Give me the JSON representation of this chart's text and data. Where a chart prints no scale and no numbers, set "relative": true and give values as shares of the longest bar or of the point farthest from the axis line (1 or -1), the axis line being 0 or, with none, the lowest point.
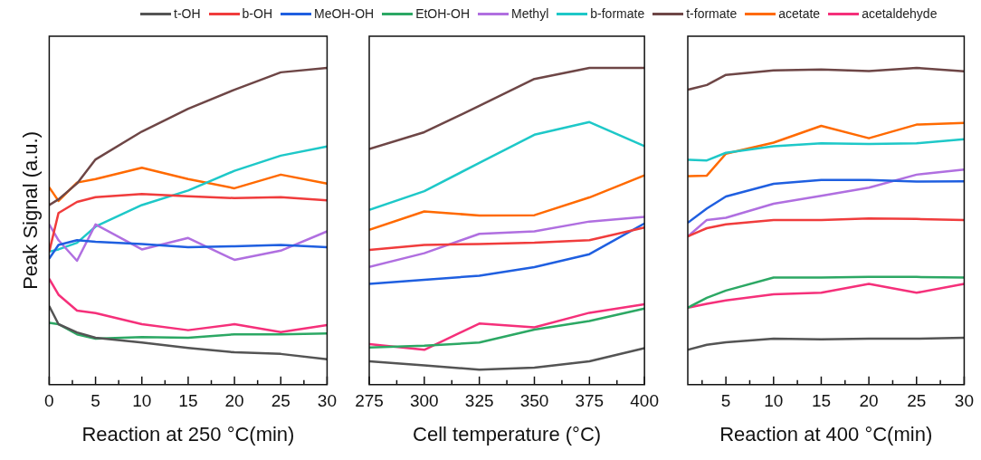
{
  "chart_data": [
    {
      "type": "line",
      "relative": true,
      "legend": "top",
      "ylabel": "Peak Signal (a.u.)",
      "xlabel": "Reaction at 250 °C(min)",
      "x": [
        0,
        1,
        3,
        5,
        10,
        15,
        20,
        25,
        30
      ],
      "xlim": [
        0,
        30
      ],
      "xticks": [
        0,
        {
          "value": 2.5,
          "label": null
        },
        5,
        {
          "value": 7.5,
          "label": null
        },
        10,
        {
          "value": 12.5,
          "label": null
        },
        15,
        {
          "value": 17.5,
          "label": null
        },
        20,
        {
          "value": 22.5,
          "label": null
        },
        25,
        {
          "value": 27.5,
          "label": null
        },
        30
      ],
      "series": [
        {
          "name": "t-OH",
          "color": "#545454",
          "values": [
            0.248,
            0.191,
            0.165,
            0.148,
            0.133,
            0.116,
            0.102,
            0.097,
            0.08
          ]
        },
        {
          "name": "b-OH",
          "color": "#f03c3c",
          "values": [
            0.42,
            0.542,
            0.577,
            0.592,
            0.602,
            0.595,
            0.589,
            0.592,
            0.582
          ]
        },
        {
          "name": "MeOH-OH",
          "color": "#1f5fe0",
          "values": [
            0.398,
            0.441,
            0.456,
            0.451,
            0.444,
            0.434,
            0.437,
            0.441,
            0.434
          ]
        },
        {
          "name": "EtOH-OH",
          "color": "#2ca864",
          "values": [
            0.195,
            0.191,
            0.159,
            0.145,
            0.15,
            0.148,
            0.159,
            0.159,
            0.162
          ]
        },
        {
          "name": "Methyl",
          "color": "#b06fe0",
          "values": [
            0.506,
            0.456,
            0.391,
            0.506,
            0.427,
            0.463,
            0.394,
            0.423,
            0.484
          ]
        },
        {
          "name": "b-formate",
          "color": "#1ec8c8",
          "values": [
            0.42,
            0.427,
            0.448,
            0.499,
            0.567,
            0.613,
            0.675,
            0.723,
            0.752
          ]
        },
        {
          "name": "t-formate",
          "color": "#6e4646",
          "values": [
            0.567,
            0.585,
            0.635,
            0.711,
            0.799,
            0.871,
            0.931,
            0.986,
            1
          ]
        },
        {
          "name": "acetate",
          "color": "#ff6a00",
          "values": [
            0.623,
            0.58,
            0.638,
            0.649,
            0.685,
            0.649,
            0.62,
            0.663,
            0.635
          ]
        },
        {
          "name": "acetaldehyde",
          "color": "#f5307a",
          "values": [
            0.334,
            0.284,
            0.234,
            0.226,
            0.191,
            0.172,
            0.191,
            0.166,
            0.188
          ]
        }
      ]
    },
    {
      "type": "line",
      "relative": true,
      "xlabel": "Cell temperature (°C)",
      "x": [
        275,
        300,
        325,
        350,
        375,
        400
      ],
      "xlim": [
        275,
        400
      ],
      "xticks": [
        275,
        {
          "value": 287.5,
          "label": null
        },
        300,
        {
          "value": 312.5,
          "label": null
        },
        325,
        {
          "value": 337.5,
          "label": null
        },
        350,
        {
          "value": 362.5,
          "label": null
        },
        375,
        {
          "value": 387.5,
          "label": null
        },
        400
      ],
      "series": [
        {
          "color": "#545454",
          "values": [
            0.074,
            0.061,
            0.047,
            0.054,
            0.074,
            0.115
          ]
        },
        {
          "color": "#f03c3c",
          "values": [
            0.425,
            0.441,
            0.444,
            0.448,
            0.456,
            0.496
          ]
        },
        {
          "color": "#1f5fe0",
          "values": [
            0.318,
            0.331,
            0.344,
            0.371,
            0.412,
            0.509
          ]
        },
        {
          "color": "#2ca864",
          "values": [
            0.117,
            0.123,
            0.133,
            0.174,
            0.201,
            0.24
          ]
        },
        {
          "color": "#b06fe0",
          "values": [
            0.372,
            0.415,
            0.476,
            0.484,
            0.515,
            0.53
          ]
        },
        {
          "color": "#1ec8c8",
          "values": [
            0.552,
            0.611,
            0.7,
            0.789,
            0.829,
            0.753
          ]
        },
        {
          "color": "#6e4646",
          "values": [
            0.744,
            0.797,
            0.88,
            0.965,
            1,
            1
          ]
        },
        {
          "color": "#ff6a00",
          "values": [
            0.489,
            0.547,
            0.534,
            0.535,
            0.591,
            0.661
          ]
        },
        {
          "color": "#f5307a",
          "values": [
            0.128,
            0.11,
            0.193,
            0.181,
            0.227,
            0.254
          ]
        }
      ]
    },
    {
      "type": "line",
      "relative": true,
      "xlabel": "Reaction at 400 °C(min)",
      "x": [
        1,
        3,
        5,
        10,
        15,
        20,
        25,
        30
      ],
      "xlim": [
        1,
        30
      ],
      "xticks": [
        {
          "value": 2.5,
          "label": null
        },
        5,
        {
          "value": 7.5,
          "label": null
        },
        10,
        {
          "value": 12.5,
          "label": null
        },
        15,
        {
          "value": 17.5,
          "label": null
        },
        20,
        {
          "value": 22.5,
          "label": null
        },
        25,
        {
          "value": 27.5,
          "label": null
        },
        30
      ],
      "series": [
        {
          "color": "#545454",
          "values": [
            0.11,
            0.126,
            0.134,
            0.145,
            0.143,
            0.145,
            0.145,
            0.148
          ]
        },
        {
          "color": "#f03c3c",
          "values": [
            0.468,
            0.494,
            0.506,
            0.52,
            0.52,
            0.525,
            0.523,
            0.52
          ]
        },
        {
          "color": "#1f5fe0",
          "values": [
            0.511,
            0.556,
            0.594,
            0.634,
            0.646,
            0.646,
            0.641,
            0.642
          ]
        },
        {
          "color": "#2ca864",
          "values": [
            0.243,
            0.274,
            0.297,
            0.338,
            0.338,
            0.34,
            0.34,
            0.338
          ]
        },
        {
          "color": "#b06fe0",
          "values": [
            0.468,
            0.52,
            0.527,
            0.571,
            0.596,
            0.622,
            0.663,
            0.679
          ]
        },
        {
          "color": "#1ec8c8",
          "values": [
            0.71,
            0.708,
            0.732,
            0.753,
            0.762,
            0.76,
            0.762,
            0.775
          ]
        },
        {
          "color": "#6e4646",
          "values": [
            0.931,
            0.946,
            0.978,
            0.992,
            0.995,
            0.99,
            1,
            0.989
          ]
        },
        {
          "color": "#ff6a00",
          "values": [
            0.658,
            0.66,
            0.729,
            0.764,
            0.817,
            0.778,
            0.821,
            0.826
          ]
        },
        {
          "color": "#f5307a",
          "values": [
            0.243,
            0.255,
            0.266,
            0.285,
            0.29,
            0.318,
            0.29,
            0.318
          ]
        }
      ]
    }
  ]
}
